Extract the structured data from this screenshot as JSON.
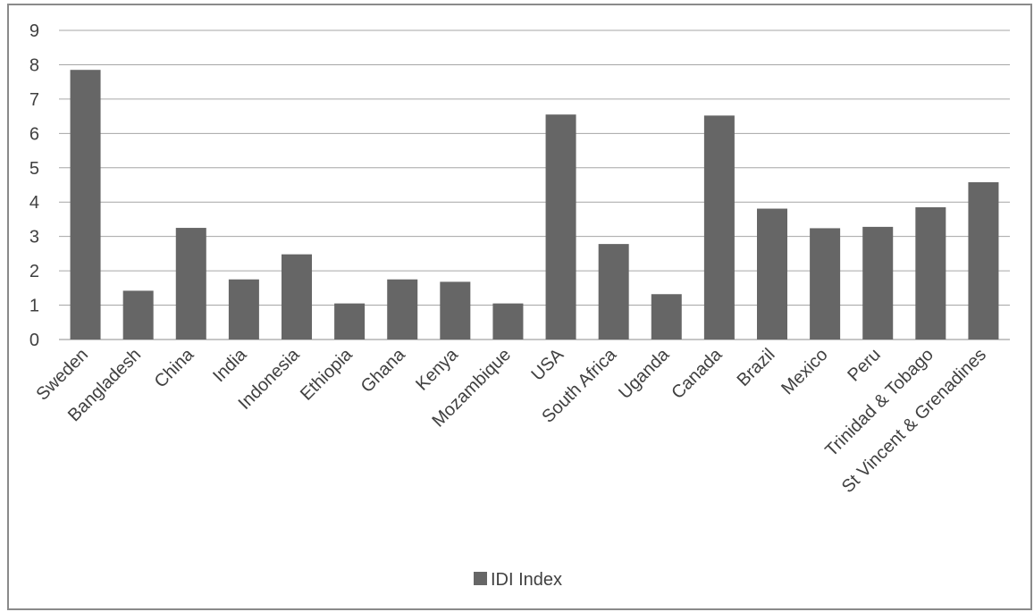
{
  "chart_data": {
    "type": "bar",
    "categories": [
      "Sweden",
      "Bangladesh",
      "China",
      "India",
      "Indonesia",
      "Ethiopia",
      "Ghana",
      "Kenya",
      "Mozambique",
      "USA",
      "South Africa",
      "Uganda",
      "Canada",
      "Brazil",
      "Mexico",
      "Peru",
      "Trinidad & Tobago",
      "St Vincent & Grenadines"
    ],
    "series": [
      {
        "name": "IDI Index",
        "values": [
          7.85,
          1.42,
          3.25,
          1.75,
          2.48,
          1.05,
          1.75,
          1.68,
          1.05,
          6.55,
          2.78,
          1.32,
          6.52,
          3.81,
          3.24,
          3.28,
          3.85,
          4.58
        ]
      }
    ],
    "ylim": [
      0,
      9
    ],
    "yticks": [
      "0",
      "1",
      "2",
      "3",
      "4",
      "5",
      "6",
      "7",
      "8",
      "9"
    ],
    "grid": true,
    "legend_position": "bottom",
    "colors": {
      "bar": "#666666",
      "grid": "#a6a6a6",
      "text": "#404040"
    }
  }
}
